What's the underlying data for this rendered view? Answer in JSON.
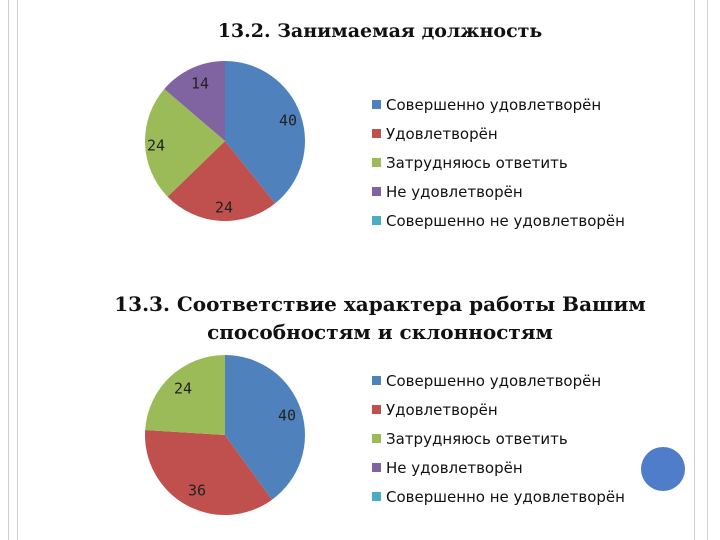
{
  "chart_data": [
    {
      "type": "pie",
      "title": "13.2. Занимаемая должность",
      "categories": [
        "Совершенно удовлетворён",
        "Удовлетворён",
        "Затрудняюсь ответить",
        "Не удовлетворён",
        "Совершенно не удовлетворён"
      ],
      "values": [
        40,
        24,
        24,
        14,
        0
      ],
      "data_labels": [
        "40",
        "24",
        "24",
        "14",
        ""
      ],
      "colors": [
        "#4f81bd",
        "#c0504d",
        "#9bbb59",
        "#8064a2",
        "#4bacc6"
      ],
      "legend_position": "right"
    },
    {
      "type": "pie",
      "title": "13.3. Соответствие характера работы Вашим способностям и склонностям",
      "categories": [
        "Совершенно удовлетворён",
        "Удовлетворён",
        "Затрудняюсь ответить",
        "Не удовлетворён",
        "Совершенно не удовлетворён"
      ],
      "values": [
        40,
        36,
        24,
        0,
        0
      ],
      "data_labels": [
        "40",
        "36",
        "24",
        "",
        ""
      ],
      "colors": [
        "#4f81bd",
        "#c0504d",
        "#9bbb59",
        "#8064a2",
        "#4bacc6"
      ],
      "legend_position": "right"
    }
  ]
}
